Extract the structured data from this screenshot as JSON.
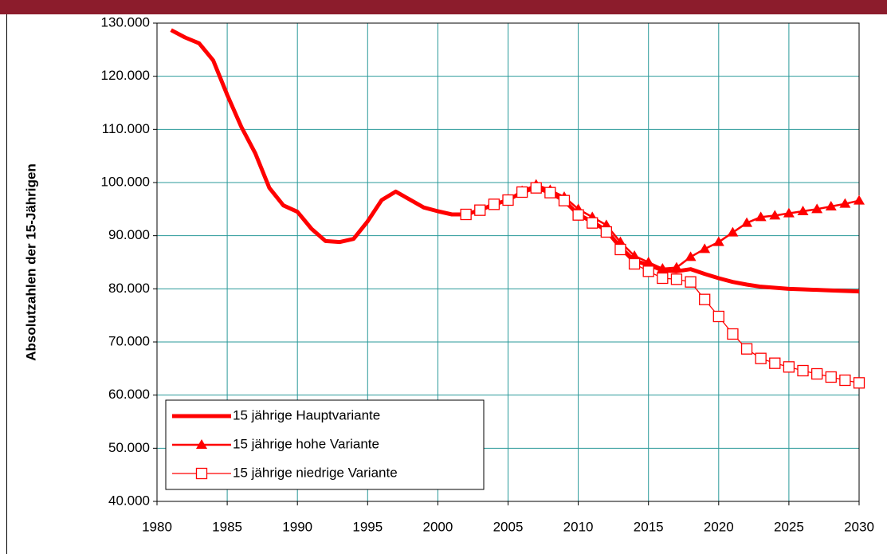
{
  "chart_data": {
    "type": "line",
    "y_label": "Absolutzahlen der 15-Jährigen",
    "x": [
      1981,
      1982,
      1983,
      1984,
      1985,
      1986,
      1987,
      1988,
      1989,
      1990,
      1991,
      1992,
      1993,
      1994,
      1995,
      1996,
      1997,
      1998,
      1999,
      2000,
      2001,
      2002,
      2003,
      2004,
      2005,
      2006,
      2007,
      2008,
      2009,
      2010,
      2011,
      2012,
      2013,
      2014,
      2015,
      2016,
      2017,
      2018,
      2019,
      2020,
      2021,
      2022,
      2023,
      2024,
      2025,
      2026,
      2027,
      2028,
      2029,
      2030
    ],
    "series": [
      {
        "name": "15 jährige Hauptvariante",
        "color": "#ff0000",
        "marker": "none",
        "values": [
          128700,
          127300,
          126200,
          123000,
          116500,
          110500,
          105500,
          99000,
          95700,
          94500,
          91300,
          89000,
          88800,
          89400,
          92700,
          96700,
          98300,
          96800,
          95300,
          94600,
          94000,
          94000,
          94800,
          95900,
          96700,
          98200,
          99000,
          98100,
          96600,
          94000,
          92600,
          91000,
          87800,
          85300,
          84500,
          83500,
          83300,
          83700,
          82800,
          82000,
          81300,
          80800,
          80400,
          80200,
          80000,
          79900,
          79800,
          79700,
          79600,
          79500
        ]
      },
      {
        "name": "15 jährige hohe Variante",
        "color": "#ff0000",
        "marker": "triangle",
        "values": [
          null,
          null,
          null,
          null,
          null,
          null,
          null,
          null,
          null,
          null,
          null,
          null,
          null,
          null,
          null,
          null,
          null,
          null,
          null,
          null,
          null,
          94000,
          94800,
          95900,
          96700,
          98400,
          99600,
          98600,
          97300,
          95000,
          93500,
          92000,
          88800,
          86200,
          85000,
          83800,
          84000,
          86000,
          87500,
          88800,
          90600,
          92400,
          93500,
          93800,
          94200,
          94600,
          95000,
          95500,
          96000,
          96600
        ]
      },
      {
        "name": "15 jährige niedrige Variante",
        "color": "#ff0000",
        "marker": "square",
        "values": [
          null,
          null,
          null,
          null,
          null,
          null,
          null,
          null,
          null,
          null,
          null,
          null,
          null,
          null,
          null,
          null,
          null,
          null,
          null,
          null,
          null,
          94000,
          94800,
          95900,
          96700,
          98200,
          99000,
          98100,
          96600,
          93900,
          92400,
          90700,
          87400,
          84700,
          83300,
          82000,
          81800,
          81300,
          78000,
          74800,
          71500,
          68700,
          66900,
          66000,
          65300,
          64600,
          64000,
          63400,
          62800,
          62300
        ]
      }
    ],
    "xlim": [
      1980,
      2030
    ],
    "xticks": [
      1980,
      1985,
      1990,
      1995,
      2000,
      2005,
      2010,
      2015,
      2020,
      2025,
      2030
    ],
    "ylim": [
      40000,
      130000
    ],
    "yticks": [
      {
        "value": 40000,
        "label": "40.000"
      },
      {
        "value": 50000,
        "label": "50.000"
      },
      {
        "value": 60000,
        "label": "60.000"
      },
      {
        "value": 70000,
        "label": "70.000"
      },
      {
        "value": 80000,
        "label": "80.000"
      },
      {
        "value": 90000,
        "label": "90.000"
      },
      {
        "value": 100000,
        "label": "100.000"
      },
      {
        "value": 110000,
        "label": "110.000"
      },
      {
        "value": 120000,
        "label": "120.000"
      },
      {
        "value": 130000,
        "label": "130.000"
      }
    ],
    "grid": true,
    "legend": "lower left"
  }
}
